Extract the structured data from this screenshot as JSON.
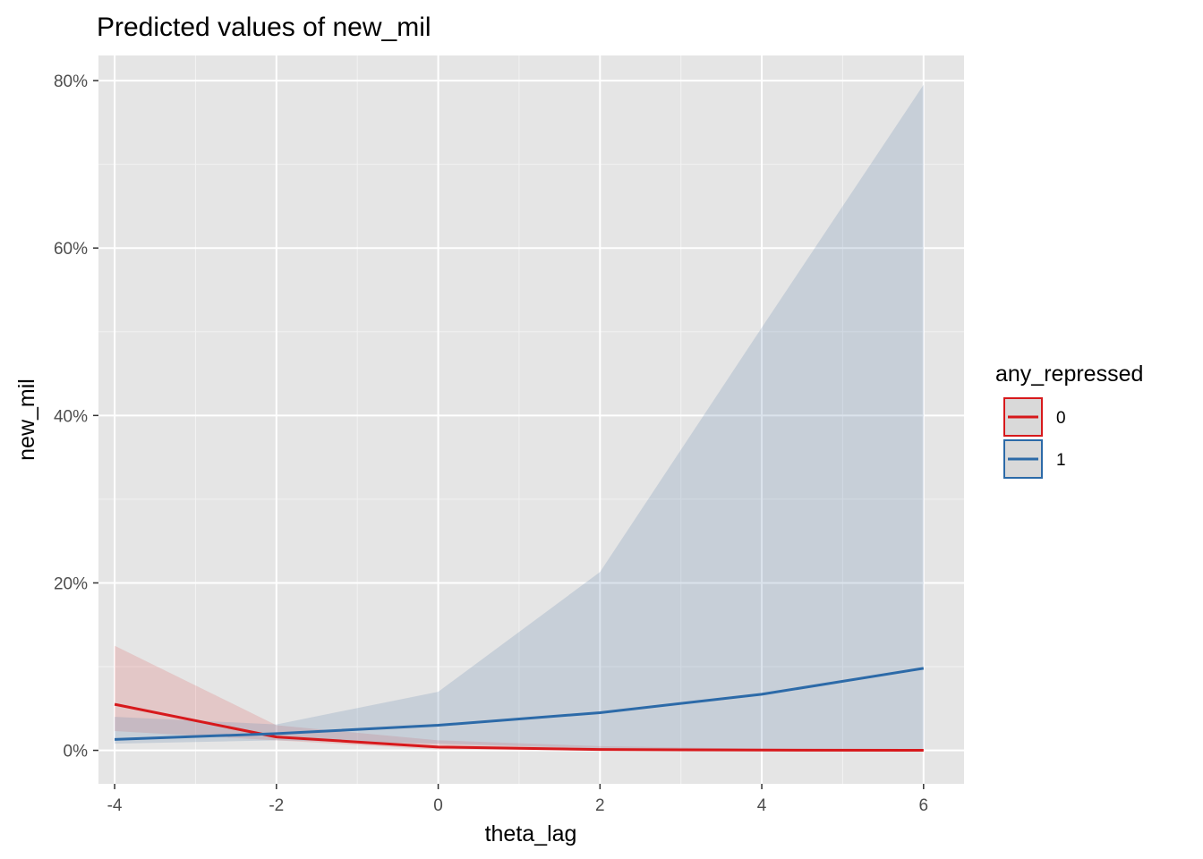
{
  "chart_data": {
    "type": "line",
    "title": "Predicted values of new_mil",
    "xlabel": "theta_lag",
    "ylabel": "new_mil",
    "xlim": [
      -4.2,
      6.5
    ],
    "ylim": [
      -0.04,
      0.83
    ],
    "x_ticks": [
      -4,
      -2,
      0,
      2,
      4,
      6
    ],
    "x_tick_labels": [
      "-4",
      "-2",
      "0",
      "2",
      "4",
      "6"
    ],
    "x_minor_ticks": [
      -3,
      -1,
      1,
      3,
      5
    ],
    "y_ticks": [
      0,
      0.2,
      0.4,
      0.6,
      0.8
    ],
    "y_tick_labels": [
      "0%",
      "20%",
      "40%",
      "60%",
      "80%"
    ],
    "y_minor_ticks": [
      0.1,
      0.3,
      0.5,
      0.7
    ],
    "grid": true,
    "panel_background": "#e5e5e5",
    "legend": {
      "title": "any_repressed",
      "position": "right"
    },
    "series": [
      {
        "name": "0",
        "color": "#d7191c",
        "ribbon_color": "#d7191c",
        "ribbon_opacity": 0.15,
        "x": [
          -4,
          -2,
          0,
          2,
          4,
          6
        ],
        "y": [
          0.055,
          0.016,
          0.004,
          0.001,
          0.0003,
          0.0001
        ],
        "lower": [
          0.023,
          0.012,
          0.001,
          0.0001,
          0.0,
          0.0
        ],
        "upper": [
          0.125,
          0.03,
          0.012,
          0.005,
          0.002,
          0.001
        ]
      },
      {
        "name": "1",
        "color": "#2c6aa8",
        "ribbon_color": "#6f8fb4",
        "ribbon_opacity": 0.25,
        "x": [
          -4,
          -2,
          0,
          2,
          4,
          6
        ],
        "y": [
          0.013,
          0.02,
          0.03,
          0.045,
          0.067,
          0.098
        ],
        "lower": [
          0.008,
          0.012,
          0.008,
          0.002,
          0.0003,
          2e-05
        ],
        "upper": [
          0.04,
          0.031,
          0.07,
          0.213,
          0.505,
          0.795
        ]
      }
    ]
  }
}
